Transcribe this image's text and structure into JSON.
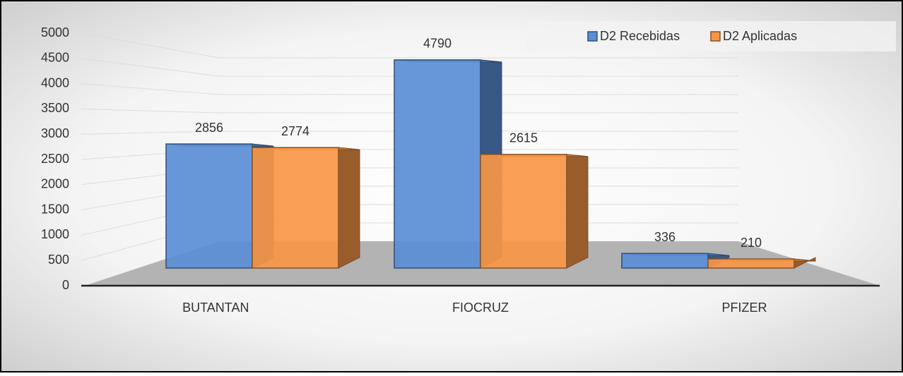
{
  "chart_data": {
    "type": "bar",
    "categories": [
      "BUTANTAN",
      "FIOCRUZ",
      "PFIZER"
    ],
    "series": [
      {
        "name": "D2 Recebidas",
        "color": "#5b8ed6",
        "values": [
          2856,
          4790,
          336
        ]
      },
      {
        "name": "D2 Aplicadas",
        "color": "#f79646",
        "values": [
          2774,
          2615,
          210
        ]
      }
    ],
    "ylim": [
      0,
      5000
    ],
    "yticks": [
      0,
      500,
      1000,
      1500,
      2000,
      2500,
      3000,
      3500,
      4000,
      4500,
      5000
    ],
    "grid": true,
    "legend": "top-right"
  }
}
